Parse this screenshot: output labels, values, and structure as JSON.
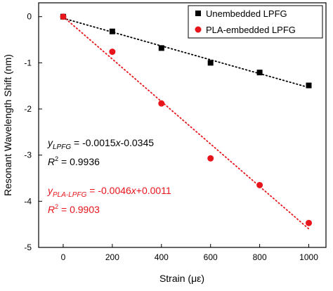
{
  "chart_data": {
    "type": "scatter",
    "title": "",
    "xlabel": "Strain (με)",
    "ylabel": "Resonant Wavelength Shift (nm)",
    "xlim": [
      -100,
      1070
    ],
    "ylim": [
      -5,
      0.3
    ],
    "x_ticks": [
      0,
      200,
      400,
      600,
      800,
      1000
    ],
    "y_ticks": [
      0,
      -1,
      -2,
      -3,
      -4,
      -5
    ],
    "grid": false,
    "legend_position": "top-right",
    "series": [
      {
        "name": "Unembedded LPFG",
        "marker": "square",
        "color": "#000000",
        "x": [
          0,
          200,
          400,
          600,
          800,
          1000
        ],
        "y": [
          0,
          -0.32,
          -0.68,
          -1.0,
          -1.21,
          -1.49
        ],
        "fit": {
          "slope": -0.0015,
          "intercept": -0.0345,
          "x_range": [
            0,
            1000
          ],
          "style": "dotted"
        }
      },
      {
        "name": "PLA-embedded LPFG",
        "marker": "circle",
        "color": "#e8141b",
        "x": [
          0,
          200,
          400,
          600,
          800,
          1000
        ],
        "y": [
          0,
          -0.76,
          -1.88,
          -3.07,
          -3.65,
          -4.47
        ],
        "fit": {
          "slope": -0.0046,
          "intercept": 0.0011,
          "x_range": [
            0,
            1000
          ],
          "style": "dotted"
        }
      }
    ],
    "annotations": [
      {
        "id": "eq1",
        "color": "#000000",
        "y_var": "y",
        "subscript": "LPFG",
        "rhs_prefix": " = -0.0015",
        "x_var": "x",
        "rhs_suffix": "-0.0345"
      },
      {
        "id": "r1",
        "color": "#000000",
        "r_label": "R",
        "sup": "2",
        "rhs": " = 0.9936"
      },
      {
        "id": "eq2",
        "color": "#e8141b",
        "y_var": "y",
        "subscript": "PLA-LPFG",
        "rhs_prefix": " = -0.0046",
        "x_var": "x",
        "rhs_suffix": "+0.0011"
      },
      {
        "id": "r2",
        "color": "#e8141b",
        "r_label": "R",
        "sup": "2",
        "rhs": " = 0.9903"
      }
    ]
  }
}
